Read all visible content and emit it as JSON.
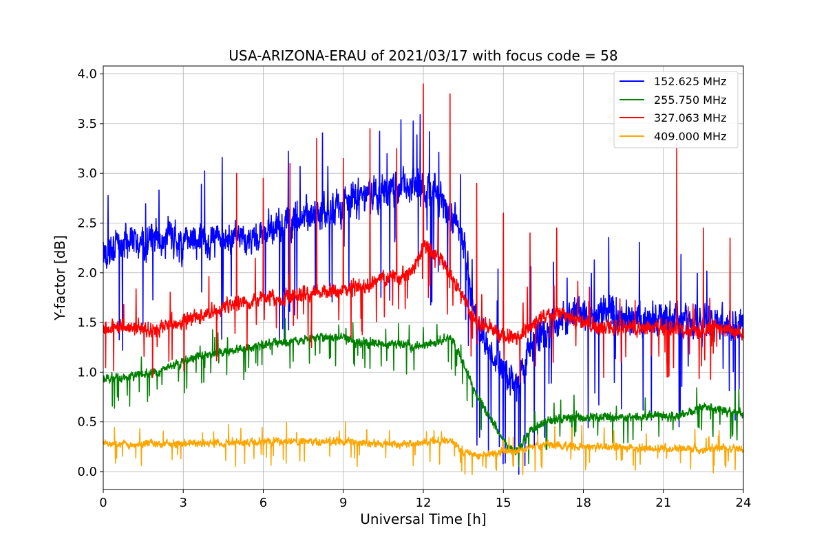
{
  "chart_data": {
    "type": "line",
    "title": "USA-ARIZONA-ERAU of 2021/03/17 with focus code = 58",
    "xlabel": "Universal Time [h]",
    "ylabel": "Y-factor [dB]",
    "xlim": [
      0,
      24
    ],
    "ylim": [
      -0.18,
      4.08
    ],
    "xticks": [
      0,
      3,
      6,
      9,
      12,
      15,
      18,
      21,
      24
    ],
    "yticks": [
      0.0,
      0.5,
      1.0,
      1.5,
      2.0,
      2.5,
      3.0,
      3.5,
      4.0
    ],
    "ytick_labels": [
      "0.0",
      "0.5",
      "1.0",
      "1.5",
      "2.0",
      "2.5",
      "3.0",
      "3.5",
      "4.0"
    ],
    "grid": true,
    "legend_position": "top-right",
    "x": [
      0,
      0.5,
      1,
      1.5,
      2,
      2.5,
      3,
      3.5,
      4,
      4.5,
      5,
      5.5,
      6,
      6.5,
      7,
      7.5,
      8,
      8.5,
      9,
      9.5,
      10,
      10.5,
      11,
      11.5,
      12,
      12.5,
      13,
      13.5,
      14,
      14.5,
      15,
      15.5,
      16,
      16.5,
      17,
      17.5,
      18,
      18.5,
      19,
      19.5,
      20,
      20.5,
      21,
      21.5,
      22,
      22.5,
      23,
      23.5,
      24
    ],
    "series": [
      {
        "name": "152.625 MHz",
        "color": "#0000ff",
        "values": [
          2.2,
          2.25,
          2.3,
          2.3,
          2.35,
          2.35,
          2.3,
          2.3,
          2.35,
          2.35,
          2.4,
          2.35,
          2.4,
          2.45,
          2.5,
          2.55,
          2.6,
          2.6,
          2.7,
          2.75,
          2.75,
          2.8,
          2.85,
          2.9,
          2.85,
          2.8,
          2.6,
          2.3,
          1.5,
          1.2,
          1.0,
          0.8,
          1.2,
          1.4,
          1.5,
          1.55,
          1.6,
          1.6,
          1.6,
          1.55,
          1.55,
          1.5,
          1.55,
          1.55,
          1.5,
          1.5,
          1.5,
          1.5,
          1.5
        ],
        "noise": 0.22
      },
      {
        "name": "255.750 MHz",
        "color": "#008000",
        "values": [
          0.92,
          0.95,
          0.95,
          0.98,
          1.0,
          1.05,
          1.1,
          1.15,
          1.18,
          1.2,
          1.22,
          1.25,
          1.28,
          1.3,
          1.3,
          1.32,
          1.35,
          1.35,
          1.35,
          1.3,
          1.3,
          1.28,
          1.28,
          1.27,
          1.27,
          1.3,
          1.35,
          1.1,
          0.75,
          0.55,
          0.3,
          0.2,
          0.4,
          0.5,
          0.52,
          0.55,
          0.55,
          0.55,
          0.55,
          0.55,
          0.55,
          0.56,
          0.55,
          0.55,
          0.6,
          0.65,
          0.63,
          0.6,
          0.6
        ],
        "noise": 0.06
      },
      {
        "name": "327.063 MHz",
        "color": "#ff0000",
        "values": [
          1.45,
          1.45,
          1.45,
          1.45,
          1.4,
          1.5,
          1.5,
          1.55,
          1.6,
          1.65,
          1.7,
          1.7,
          1.75,
          1.75,
          1.75,
          1.78,
          1.8,
          1.8,
          1.82,
          1.85,
          1.9,
          1.95,
          1.95,
          2.0,
          2.25,
          2.2,
          2.0,
          1.75,
          1.5,
          1.45,
          1.35,
          1.35,
          1.45,
          1.55,
          1.6,
          1.55,
          1.5,
          1.45,
          1.45,
          1.45,
          1.45,
          1.45,
          1.45,
          1.45,
          1.4,
          1.45,
          1.45,
          1.4,
          1.4
        ],
        "noise": 0.1,
        "spikes": [
          [
            5.0,
            3.0
          ],
          [
            6.0,
            2.95
          ],
          [
            7.0,
            3.1
          ],
          [
            8.0,
            3.35
          ],
          [
            9.0,
            3.15
          ],
          [
            10.0,
            3.45
          ],
          [
            11.0,
            3.25
          ],
          [
            12.0,
            3.9
          ],
          [
            13.0,
            3.8
          ],
          [
            14.0,
            2.9
          ],
          [
            15.0,
            2.6
          ],
          [
            16.0,
            2.4
          ],
          [
            17.0,
            2.45
          ],
          [
            21.5,
            3.3
          ],
          [
            22.5,
            2.45
          ],
          [
            23.5,
            2.35
          ]
        ]
      },
      {
        "name": "409.000 MHz",
        "color": "#ffa500",
        "values": [
          0.28,
          0.28,
          0.28,
          0.28,
          0.28,
          0.28,
          0.28,
          0.28,
          0.28,
          0.28,
          0.3,
          0.3,
          0.3,
          0.3,
          0.3,
          0.3,
          0.3,
          0.3,
          0.3,
          0.3,
          0.28,
          0.28,
          0.28,
          0.28,
          0.3,
          0.3,
          0.32,
          0.2,
          0.15,
          0.18,
          0.2,
          0.2,
          0.25,
          0.27,
          0.27,
          0.25,
          0.25,
          0.25,
          0.25,
          0.24,
          0.23,
          0.23,
          0.23,
          0.23,
          0.23,
          0.23,
          0.23,
          0.23,
          0.23
        ],
        "noise": 0.05
      }
    ]
  }
}
